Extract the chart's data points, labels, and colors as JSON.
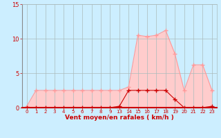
{
  "x_indices": [
    0,
    1,
    2,
    3,
    4,
    5,
    6,
    7,
    8,
    9,
    10,
    11,
    12,
    13,
    14,
    15,
    16,
    17,
    18,
    19,
    20
  ],
  "x_labels": [
    "0",
    "1",
    "2",
    "3",
    "4",
    "5",
    "6",
    "7",
    "8",
    "9",
    "13",
    "14",
    "15",
    "16",
    "17",
    "18",
    "19",
    "20",
    "21",
    "22",
    "23"
  ],
  "mean_wind": [
    0,
    0,
    0,
    0,
    0,
    0,
    0,
    0,
    0,
    0,
    0.2,
    2.5,
    2.5,
    2.5,
    2.5,
    2.5,
    1.2,
    0,
    0,
    0,
    0.2
  ],
  "gust_wind": [
    0.2,
    2.5,
    2.5,
    2.5,
    2.5,
    2.5,
    2.5,
    2.5,
    2.5,
    2.5,
    2.5,
    3.0,
    10.5,
    10.3,
    10.5,
    11.2,
    7.8,
    2.5,
    6.2,
    6.2,
    2.5
  ],
  "ylim": [
    0,
    15
  ],
  "yticks": [
    0,
    5,
    10,
    15
  ],
  "xlabel": "Vent moyen/en rafales ( km/h )",
  "bg_color": "#cceeff",
  "line_color_mean": "#cc0000",
  "line_color_gust": "#ff9999",
  "fill_color_gust": "#ffcccc",
  "grid_color": "#aabbbb",
  "axis_line_color": "#cc0000",
  "marker_size": 2.5
}
